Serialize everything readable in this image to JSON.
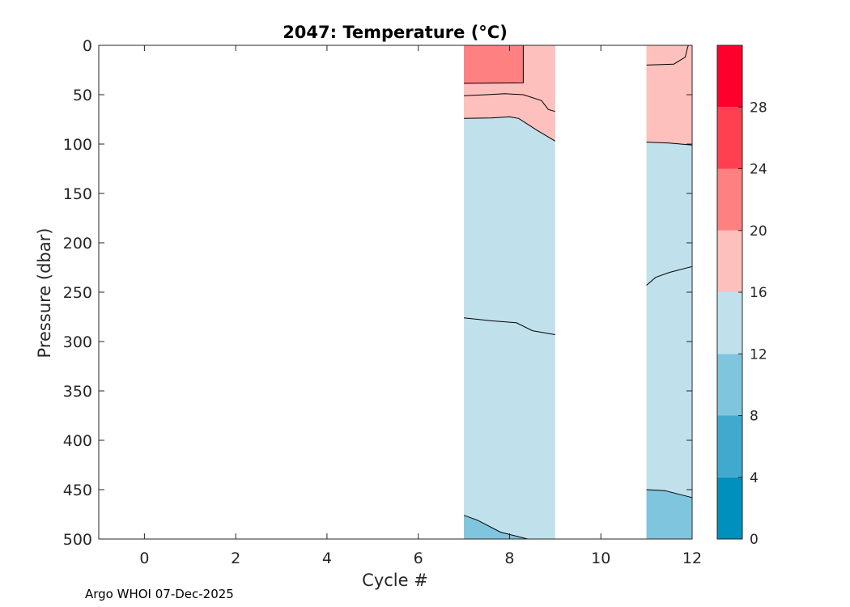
{
  "chart_data": {
    "type": "contour",
    "title": "2047:  Temperature (°C)",
    "xlabel": "Cycle #",
    "ylabel": "Pressure (dbar)",
    "xlim": [
      -1,
      12
    ],
    "ylim": [
      0,
      500
    ],
    "y_reversed": true,
    "xticks": [
      0,
      2,
      4,
      6,
      8,
      10,
      12
    ],
    "yticks": [
      0,
      50,
      100,
      150,
      200,
      250,
      300,
      350,
      400,
      450,
      500
    ],
    "colorbar": {
      "range": [
        0,
        32
      ],
      "levels": [
        0,
        4,
        8,
        12,
        16,
        20,
        24,
        28,
        32
      ],
      "tick_labels": [
        0,
        4,
        8,
        12,
        16,
        20,
        24,
        28
      ],
      "colors": [
        "#0090bd",
        "#40a9cd",
        "#80c5de",
        "#c0e1ec",
        "#fec0bc",
        "#fe8080",
        "#fe4050",
        "#fe002c"
      ]
    },
    "data_blocks": [
      {
        "x_range": [
          7,
          9
        ],
        "regions": [
          {
            "band": "12-16",
            "color": "#c0e1ec",
            "points": [
              [
                7,
                0
              ],
              [
                9,
                0
              ],
              [
                9,
                500
              ],
              [
                7,
                500
              ]
            ]
          },
          {
            "band": "8-12",
            "color": "#80c5de",
            "points": [
              [
                7,
                476
              ],
              [
                7.3,
                481
              ],
              [
                7.8,
                493
              ],
              [
                8.4,
                500
              ],
              [
                7,
                500
              ]
            ]
          },
          {
            "band": "16-20",
            "color": "#fec0bc",
            "points": [
              [
                7,
                0
              ],
              [
                9,
                0
              ],
              [
                9,
                97
              ],
              [
                8.6,
                86
              ],
              [
                8.2,
                74
              ],
              [
                8.0,
                72.5
              ],
              [
                7.6,
                73.5
              ],
              [
                7,
                74
              ]
            ]
          },
          {
            "band": "20-24",
            "color": "#fe8080",
            "points": [
              [
                7,
                0
              ],
              [
                8.3,
                0
              ],
              [
                8.3,
                38
              ],
              [
                7,
                38.5
              ]
            ]
          }
        ],
        "contours": [
          [
            [
              7,
              476
            ],
            [
              7.3,
              481
            ],
            [
              7.8,
              493
            ],
            [
              8.4,
              500
            ]
          ],
          [
            [
              7,
              276
            ],
            [
              7.6,
              279
            ],
            [
              8.15,
              281
            ],
            [
              8.5,
              289
            ],
            [
              9,
              293
            ]
          ],
          [
            [
              7,
              74
            ],
            [
              7.6,
              73.5
            ],
            [
              8.0,
              72.5
            ],
            [
              8.2,
              74
            ],
            [
              8.6,
              86
            ],
            [
              9,
              97
            ]
          ],
          [
            [
              7,
              51
            ],
            [
              7.5,
              50
            ],
            [
              7.9,
              49
            ],
            [
              8.3,
              50
            ],
            [
              8.7,
              56
            ],
            [
              8.85,
              65
            ],
            [
              9,
              67
            ]
          ],
          [
            [
              8.3,
              0
            ],
            [
              8.3,
              38
            ],
            [
              7,
              38.5
            ]
          ]
        ]
      },
      {
        "x_range": [
          11,
          12
        ],
        "regions": [
          {
            "band": "12-16",
            "color": "#c0e1ec",
            "points": [
              [
                11,
                0
              ],
              [
                12,
                0
              ],
              [
                12,
                500
              ],
              [
                11,
                500
              ]
            ]
          },
          {
            "band": "8-12",
            "color": "#80c5de",
            "points": [
              [
                11,
                450
              ],
              [
                11.4,
                451
              ],
              [
                12,
                458
              ],
              [
                12,
                500
              ],
              [
                11,
                500
              ]
            ]
          },
          {
            "band": "16-20",
            "color": "#fec0bc",
            "points": [
              [
                11,
                0
              ],
              [
                12,
                0
              ],
              [
                12,
                101
              ],
              [
                11.5,
                99
              ],
              [
                11,
                98
              ]
            ]
          }
        ],
        "contours": [
          [
            [
              11,
              450
            ],
            [
              11.4,
              451
            ],
            [
              12,
              458
            ]
          ],
          [
            [
              11,
              243
            ],
            [
              11.2,
              235
            ],
            [
              11.5,
              230
            ],
            [
              12,
              224
            ]
          ],
          [
            [
              11,
              98
            ],
            [
              11.5,
              99
            ],
            [
              12,
              101
            ]
          ],
          [
            [
              11,
              20
            ],
            [
              11.6,
              19
            ],
            [
              11.85,
              12
            ],
            [
              11.9,
              2
            ],
            [
              11.92,
              0
            ]
          ]
        ]
      }
    ]
  },
  "footer": {
    "credit": "Argo WHOI 07-Dec-2025"
  }
}
